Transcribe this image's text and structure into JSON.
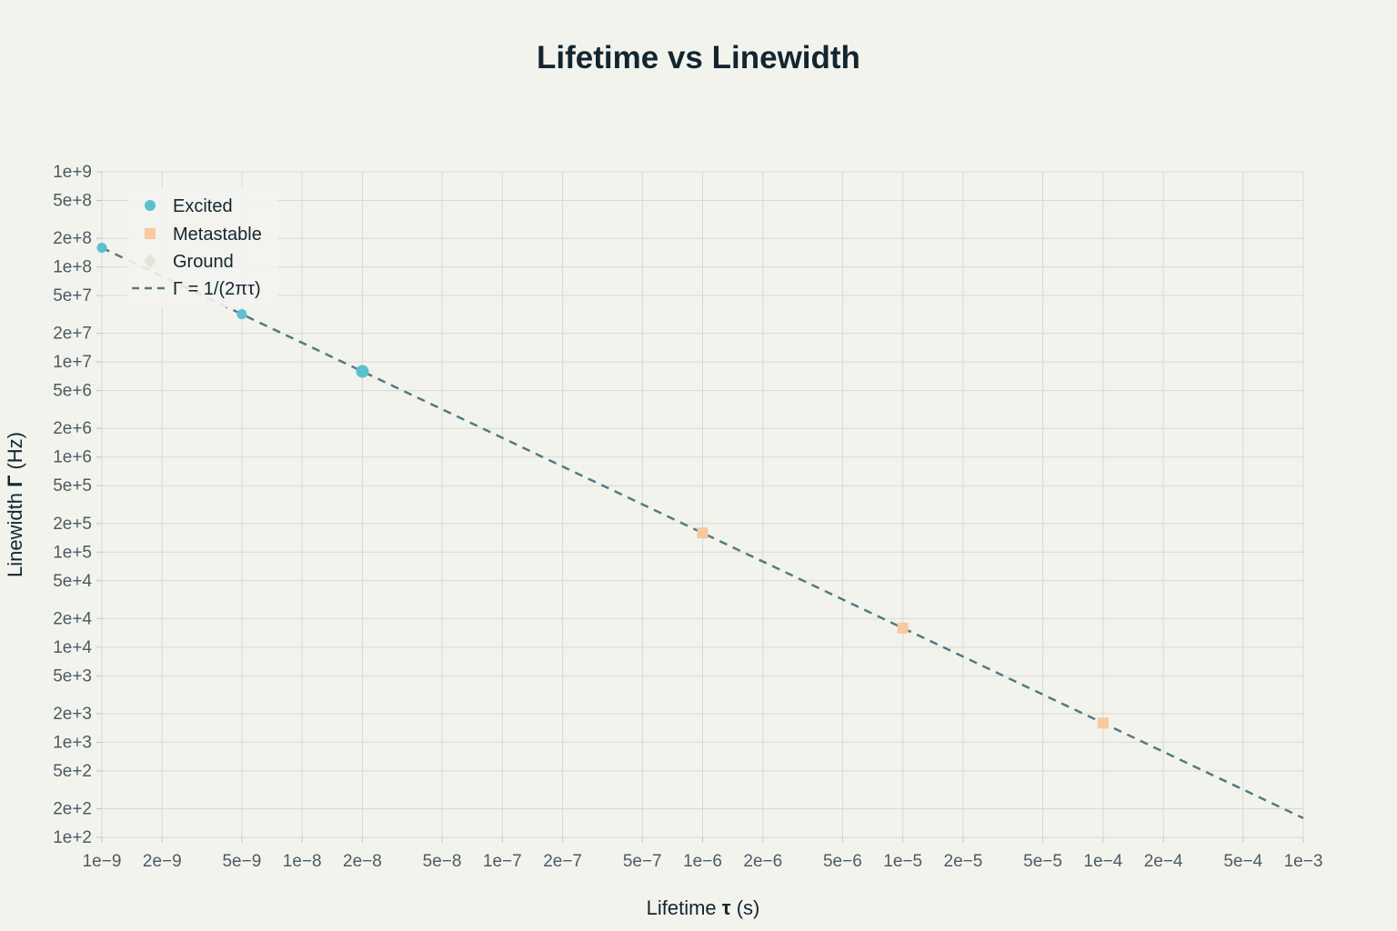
{
  "chart_data": {
    "type": "scatter",
    "title": "Lifetime vs Linewidth",
    "xlabel": {
      "prefix": "Lifetime ",
      "symbol": "τ",
      "suffix": " (s)"
    },
    "ylabel": {
      "prefix": "Linewidth ",
      "symbol": "Γ",
      "suffix": " (Hz)"
    },
    "x_scale": "log",
    "y_scale": "log",
    "xlim": [
      1e-09,
      0.001
    ],
    "ylim": [
      100,
      1000000000
    ],
    "grid": true,
    "legend_position": "top-left",
    "x_ticks": [
      {
        "value": 1e-09,
        "label": "1e−9"
      },
      {
        "value": 2e-09,
        "label": "2e−9"
      },
      {
        "value": 5e-09,
        "label": "5e−9"
      },
      {
        "value": 1e-08,
        "label": "1e−8"
      },
      {
        "value": 2e-08,
        "label": "2e−8"
      },
      {
        "value": 5e-08,
        "label": "5e−8"
      },
      {
        "value": 1e-07,
        "label": "1e−7"
      },
      {
        "value": 2e-07,
        "label": "2e−7"
      },
      {
        "value": 5e-07,
        "label": "5e−7"
      },
      {
        "value": 1e-06,
        "label": "1e−6"
      },
      {
        "value": 2e-06,
        "label": "2e−6"
      },
      {
        "value": 5e-06,
        "label": "5e−6"
      },
      {
        "value": 1e-05,
        "label": "1e−5"
      },
      {
        "value": 2e-05,
        "label": "2e−5"
      },
      {
        "value": 5e-05,
        "label": "5e−5"
      },
      {
        "value": 0.0001,
        "label": "1e−4"
      },
      {
        "value": 0.0002,
        "label": "2e−4"
      },
      {
        "value": 0.0005,
        "label": "5e−4"
      },
      {
        "value": 0.001,
        "label": "1e−3"
      }
    ],
    "y_ticks": [
      {
        "value": 100,
        "label": "1e+2"
      },
      {
        "value": 200,
        "label": "2e+2"
      },
      {
        "value": 500,
        "label": "5e+2"
      },
      {
        "value": 1000,
        "label": "1e+3"
      },
      {
        "value": 2000,
        "label": "2e+3"
      },
      {
        "value": 5000,
        "label": "5e+3"
      },
      {
        "value": 10000,
        "label": "1e+4"
      },
      {
        "value": 20000,
        "label": "2e+4"
      },
      {
        "value": 50000,
        "label": "5e+4"
      },
      {
        "value": 100000,
        "label": "1e+5"
      },
      {
        "value": 200000,
        "label": "2e+5"
      },
      {
        "value": 500000,
        "label": "5e+5"
      },
      {
        "value": 1000000,
        "label": "1e+6"
      },
      {
        "value": 2000000,
        "label": "2e+6"
      },
      {
        "value": 5000000,
        "label": "5e+6"
      },
      {
        "value": 10000000,
        "label": "1e+7"
      },
      {
        "value": 20000000,
        "label": "2e+7"
      },
      {
        "value": 50000000,
        "label": "5e+7"
      },
      {
        "value": 100000000,
        "label": "1e+8"
      },
      {
        "value": 200000000,
        "label": "2e+8"
      },
      {
        "value": 500000000,
        "label": "5e+8"
      },
      {
        "value": 1000000000,
        "label": "1e+9"
      }
    ],
    "series": [
      {
        "name": "Excited",
        "marker": "circle",
        "color": "#5bc0cf",
        "points": [
          {
            "x": 1e-09,
            "y": 159000000,
            "size": "small"
          },
          {
            "x": 5e-09,
            "y": 31800000,
            "size": "small"
          },
          {
            "x": 2e-08,
            "y": 7960000,
            "size": "large"
          }
        ]
      },
      {
        "name": "Metastable",
        "marker": "square",
        "color": "#f7c99e",
        "points": [
          {
            "x": 1e-06,
            "y": 159000
          },
          {
            "x": 1e-05,
            "y": 15900
          },
          {
            "x": 0.0001,
            "y": 1590
          }
        ]
      },
      {
        "name": "Ground",
        "marker": "diamond",
        "color": "#e2e6d8",
        "points": []
      },
      {
        "name": "Γ = 1/(2πτ)",
        "marker": "dashed-line",
        "color": "#557a80",
        "formula": "1/(2*pi*x)",
        "x_range": [
          1e-09,
          0.001
        ]
      }
    ]
  }
}
